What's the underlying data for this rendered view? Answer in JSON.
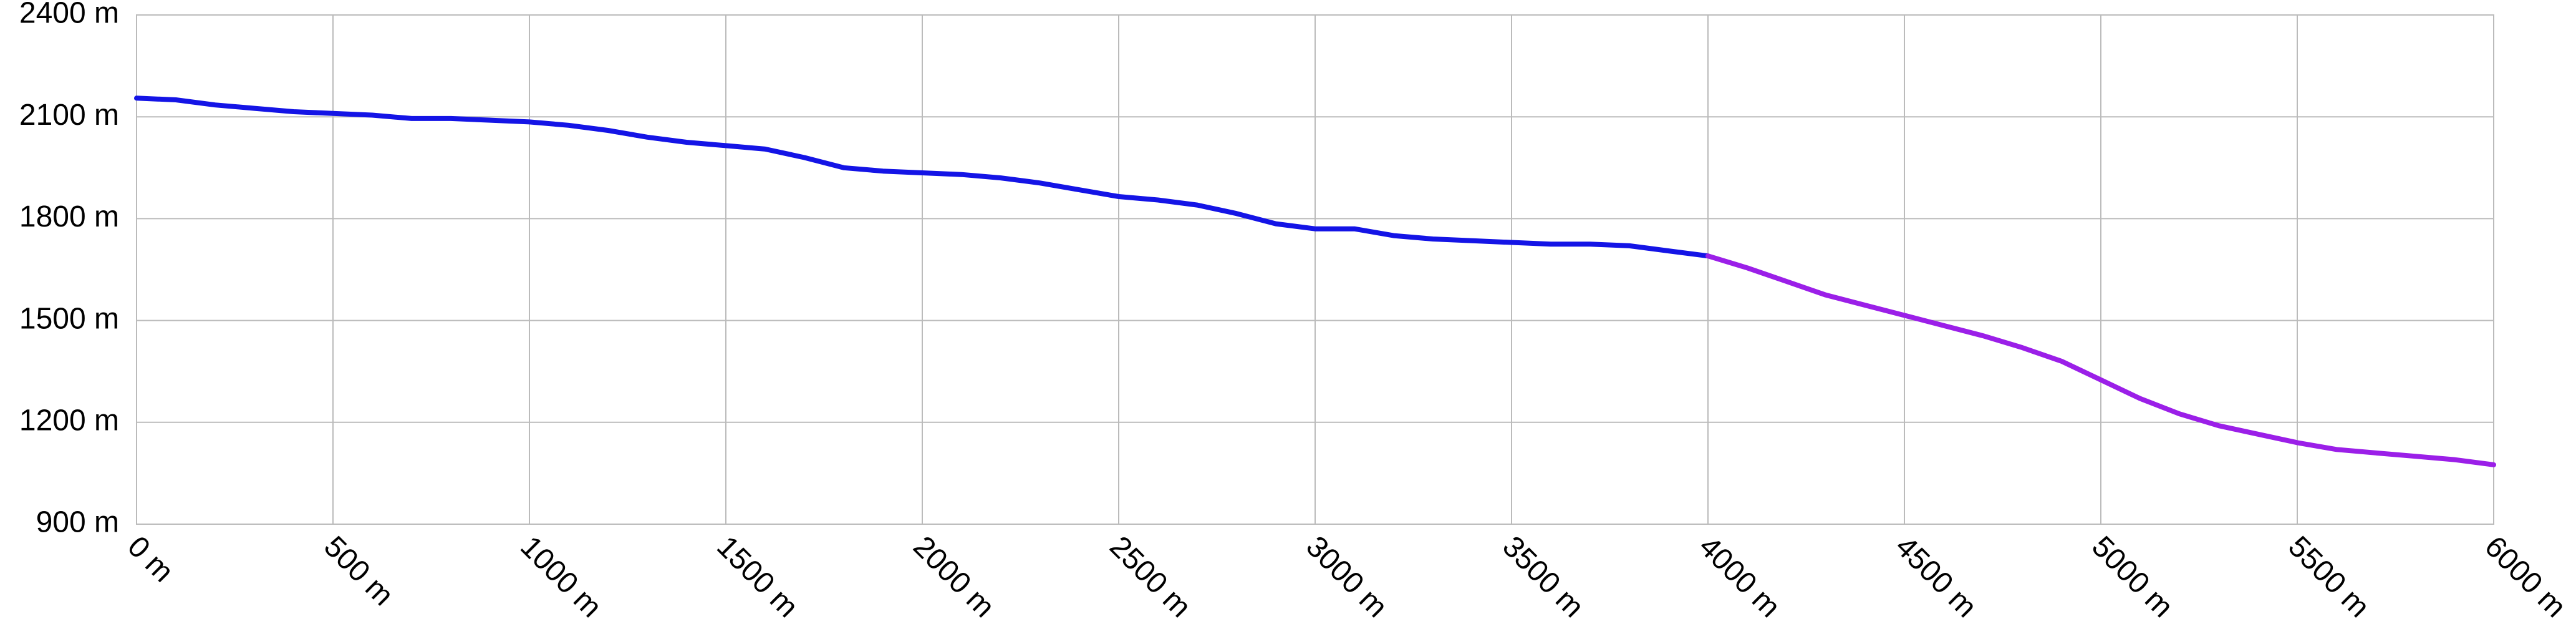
{
  "chart_data": {
    "type": "line",
    "xlim": [
      0,
      6000
    ],
    "xticks": [
      {
        "value": 0,
        "label": "0 m"
      },
      {
        "value": 500,
        "label": "500 m"
      },
      {
        "value": 1000,
        "label": "1000 m"
      },
      {
        "value": 1500,
        "label": "1500 m"
      },
      {
        "value": 2000,
        "label": "2000 m"
      },
      {
        "value": 2500,
        "label": "2500 m"
      },
      {
        "value": 3000,
        "label": "3000 m"
      },
      {
        "value": 3500,
        "label": "3500 m"
      },
      {
        "value": 4000,
        "label": "4000 m"
      },
      {
        "value": 4500,
        "label": "4500 m"
      },
      {
        "value": 5000,
        "label": "5000 m"
      },
      {
        "value": 5500,
        "label": "5500 m"
      },
      {
        "value": 6000,
        "label": "6000 m"
      }
    ],
    "ylim": [
      900,
      2400
    ],
    "yticks": [
      {
        "value": 900,
        "label": "900 m"
      },
      {
        "value": 1200,
        "label": "1200 m"
      },
      {
        "value": 1500,
        "label": "1500 m"
      },
      {
        "value": 1800,
        "label": "1800 m"
      },
      {
        "value": 2100,
        "label": "2100 m"
      },
      {
        "value": 2400,
        "label": "2400 m"
      }
    ],
    "grid": true,
    "series": [
      {
        "color": "#1414e6",
        "x": [
          0,
          100,
          200,
          300,
          400,
          500,
          600,
          700,
          800,
          900,
          1000,
          1100,
          1200,
          1300,
          1400,
          1500,
          1600,
          1700,
          1800,
          1900,
          2000,
          2100,
          2200,
          2300,
          2400,
          2500,
          2600,
          2700,
          2800,
          2900,
          3000,
          3100,
          3200,
          3300,
          3400,
          3500,
          3600,
          3700,
          3800,
          3900,
          4000
        ],
        "values": [
          2155,
          2150,
          2135,
          2125,
          2115,
          2110,
          2105,
          2095,
          2095,
          2090,
          2085,
          2075,
          2060,
          2040,
          2025,
          2015,
          2005,
          1980,
          1950,
          1940,
          1935,
          1930,
          1920,
          1905,
          1885,
          1865,
          1855,
          1840,
          1815,
          1785,
          1770,
          1770,
          1750,
          1740,
          1735,
          1730,
          1725,
          1725,
          1720,
          1705,
          1690
        ]
      },
      {
        "color": "#9b1fe8",
        "x": [
          4000,
          4100,
          4200,
          4300,
          4400,
          4500,
          4600,
          4700,
          4800,
          4900,
          5000,
          5100,
          5200,
          5300,
          5400,
          5500,
          5600,
          5700,
          5800,
          5900,
          6000
        ],
        "values": [
          1690,
          1655,
          1615,
          1575,
          1545,
          1515,
          1485,
          1455,
          1420,
          1380,
          1325,
          1270,
          1225,
          1190,
          1165,
          1140,
          1120,
          1110,
          1100,
          1090,
          1075
        ]
      }
    ]
  }
}
